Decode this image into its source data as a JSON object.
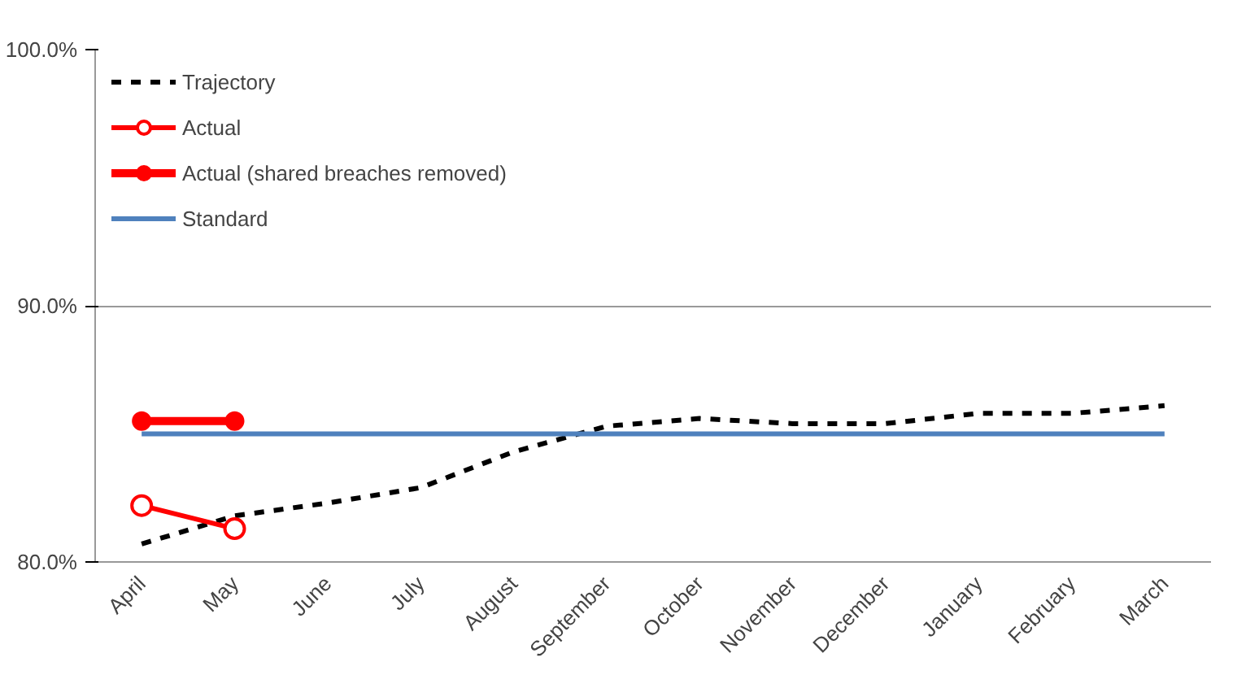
{
  "chart_data": {
    "type": "line",
    "categories": [
      "April",
      "May",
      "June",
      "July",
      "August",
      "September",
      "October",
      "November",
      "December",
      "January",
      "February",
      "March"
    ],
    "series": [
      {
        "name": "Trajectory",
        "color": "#000000",
        "line_style": "dashed",
        "marker": "none",
        "values": [
          80.7,
          81.8,
          82.3,
          82.9,
          84.3,
          85.3,
          85.6,
          85.4,
          85.4,
          85.8,
          85.8,
          86.1
        ]
      },
      {
        "name": "Actual",
        "color": "#ff0000",
        "line_style": "solid",
        "marker": "circle",
        "values": [
          82.2,
          81.3,
          null,
          null,
          null,
          null,
          null,
          null,
          null,
          null,
          null,
          null
        ]
      },
      {
        "name": "Actual (shared breaches removed)",
        "color": "#ff0000",
        "line_style": "solid",
        "marker": "circle",
        "values": [
          85.5,
          85.5,
          null,
          null,
          null,
          null,
          null,
          null,
          null,
          null,
          null,
          null
        ]
      },
      {
        "name": "Standard",
        "color": "#4f81bd",
        "line_style": "solid",
        "marker": "none",
        "values": [
          85,
          85,
          85,
          85,
          85,
          85,
          85,
          85,
          85,
          85,
          85,
          85
        ]
      }
    ],
    "ylim": [
      80,
      100
    ],
    "yticks": [
      {
        "value": 80,
        "label": "80.0%"
      },
      {
        "value": 90,
        "label": "90.0%"
      },
      {
        "value": 100,
        "label": "100.0%"
      }
    ],
    "grid": "y",
    "legend": "top left"
  }
}
